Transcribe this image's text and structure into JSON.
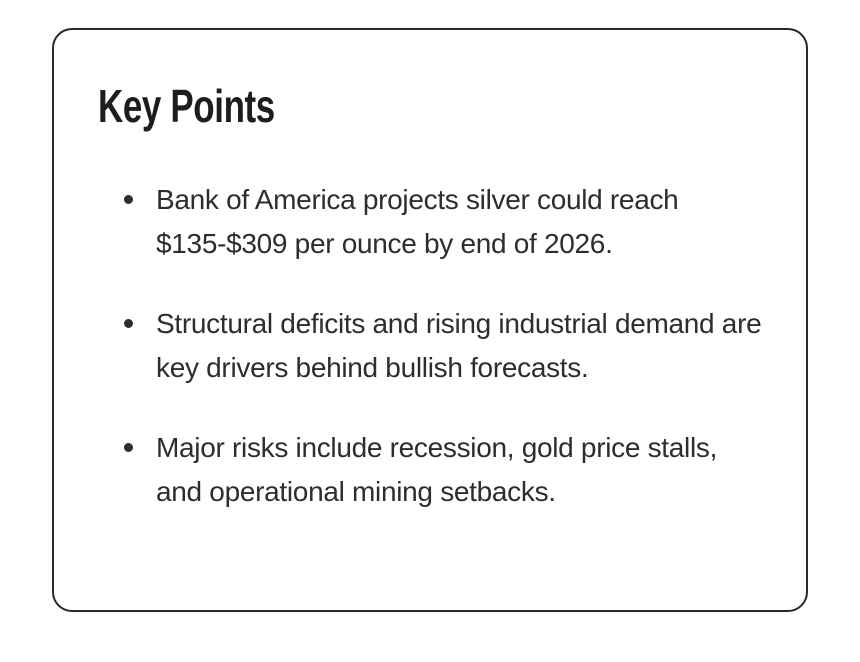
{
  "page": {
    "background_color": "#ffffff"
  },
  "card": {
    "title": "Key Points",
    "border_color": "#27292b",
    "title_color": "#1c1d1f",
    "text_color": "#2b2d30",
    "bullet_items": [
      {
        "text": "Bank of America projects silver could reach $135-$309 per ounce by end of 2026."
      },
      {
        "text": "Structural deficits and rising industrial demand are key drivers behind bullish forecasts."
      },
      {
        "text": "Major risks include recession, gold price stalls, and operational mining setbacks."
      }
    ]
  }
}
